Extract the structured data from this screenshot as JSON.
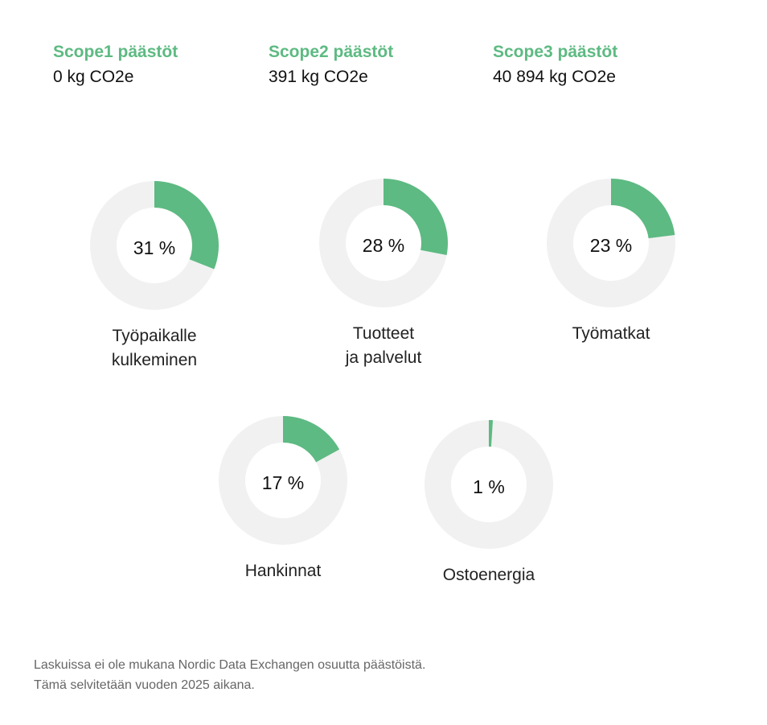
{
  "scopes": [
    {
      "title": "Scope1 päästöt",
      "value": "0 kg CO2e"
    },
    {
      "title": "Scope2 päästöt",
      "value": "391 kg CO2e"
    },
    {
      "title": "Scope3 päästöt",
      "value": "40 894 kg CO2e"
    }
  ],
  "chart_data": {
    "type": "pie",
    "variant": "donut",
    "colors": {
      "filled": "#5dba82",
      "remaining": "#f1f1f1"
    },
    "items": [
      {
        "label": "Työpaikalle\nkulkeminen",
        "value": 31,
        "display": "31 %"
      },
      {
        "label": "Tuotteet\nja palvelut",
        "value": 28,
        "display": "28 %"
      },
      {
        "label": "Työmatkat",
        "value": 23,
        "display": "23 %"
      },
      {
        "label": "Hankinnat",
        "value": 17,
        "display": "17 %"
      },
      {
        "label": "Ostoenergia",
        "value": 1,
        "display": "1 %"
      }
    ]
  },
  "note": "Laskuissa ei ole mukana Nordic Data Exchangen osuutta päästöistä. Tämä selvitetään vuoden 2025 aikana."
}
